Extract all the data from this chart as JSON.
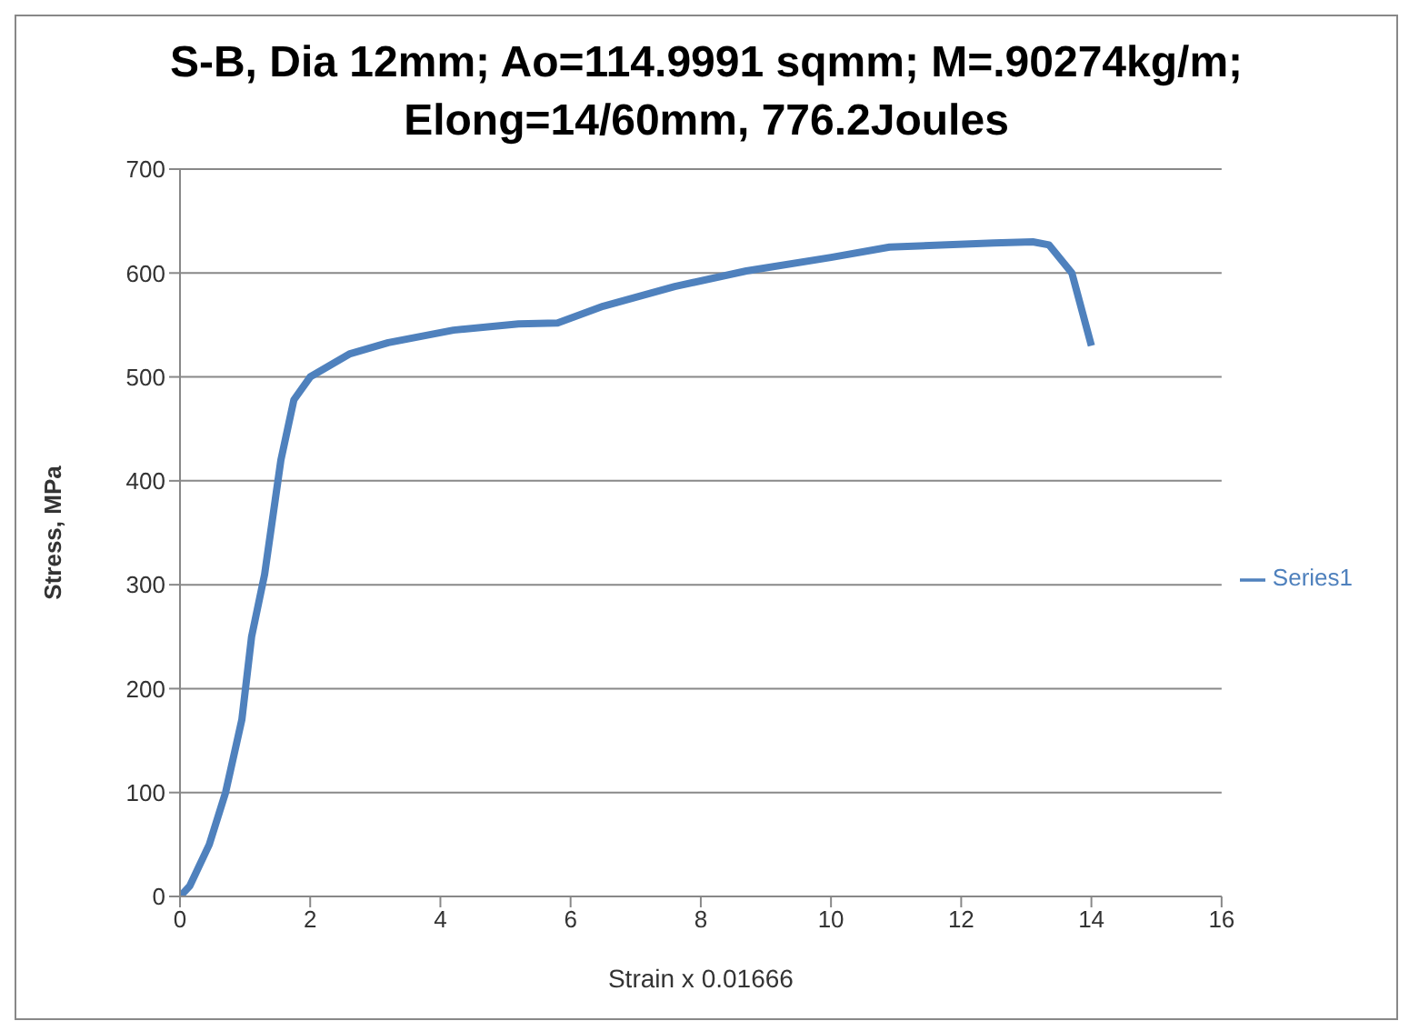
{
  "chart_data": {
    "type": "line",
    "title": "S-B, Dia 12mm; Ao=114.9991 sqmm; M=.90274kg/m; Elong=14/60mm, 776.2Joules",
    "xlabel": "Strain x 0.01666",
    "ylabel": "Stress, MPa",
    "x": [
      0,
      0.15,
      0.45,
      0.7,
      0.95,
      1.1,
      1.3,
      1.55,
      1.75,
      2,
      2.6,
      3.2,
      4.2,
      5.2,
      5.8,
      6.5,
      7.6,
      8.7,
      10,
      10.9,
      12.5,
      13.1,
      13.35,
      13.7,
      14
    ],
    "series": [
      {
        "name": "Series1",
        "color": "#4f81bd",
        "values": [
          0,
          10,
          50,
          100,
          170,
          250,
          310,
          420,
          478,
          500,
          522,
          533,
          545,
          551,
          552,
          568,
          587,
          602,
          615,
          625,
          629,
          630,
          627,
          600,
          530
        ]
      }
    ],
    "xlim": [
      0,
      16
    ],
    "xticks": [
      0,
      2,
      4,
      6,
      8,
      10,
      12,
      14,
      16
    ],
    "ylim": [
      0,
      700
    ],
    "yticks": [
      0,
      100,
      200,
      300,
      400,
      500,
      600,
      700
    ],
    "grid": "y",
    "legend": "right",
    "marker": "none",
    "line_style": "solid"
  }
}
